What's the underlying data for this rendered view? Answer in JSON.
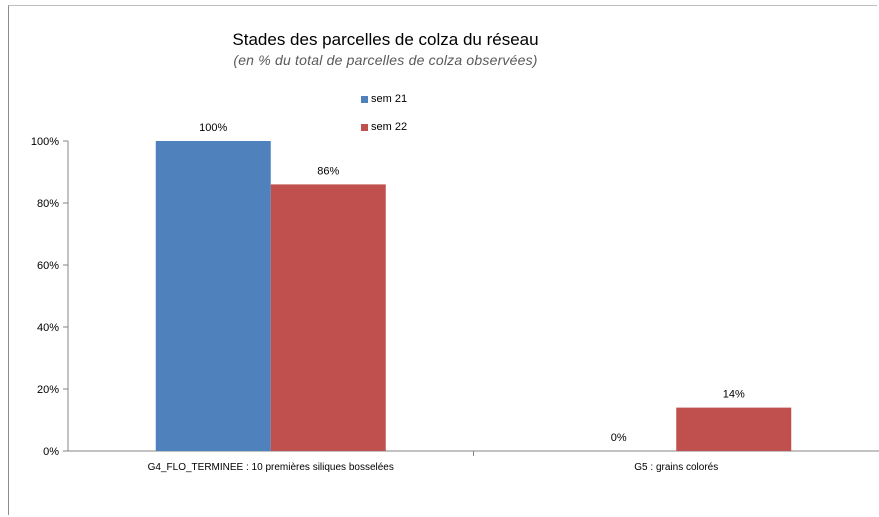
{
  "chart_data": {
    "type": "bar",
    "title": "Stades des parcelles de colza du réseau",
    "subtitle": "(en %  du total de parcelles de colza observées)",
    "categories": [
      "G4_FLO_TERMINEE : 10 premières siliques bosselées",
      "G5 : grains colorés"
    ],
    "series": [
      {
        "name": "sem 21",
        "values": [
          100,
          0
        ],
        "labels": [
          "100%",
          "0%"
        ],
        "color": "#4f81bd"
      },
      {
        "name": "sem 22",
        "values": [
          86,
          14
        ],
        "labels": [
          "86%",
          "14%"
        ],
        "color": "#c0504d"
      }
    ],
    "yticks": [
      "0%",
      "20%",
      "40%",
      "60%",
      "80%",
      "100%"
    ],
    "ylim": [
      0,
      100
    ],
    "legend": "top-center",
    "grid": false
  }
}
